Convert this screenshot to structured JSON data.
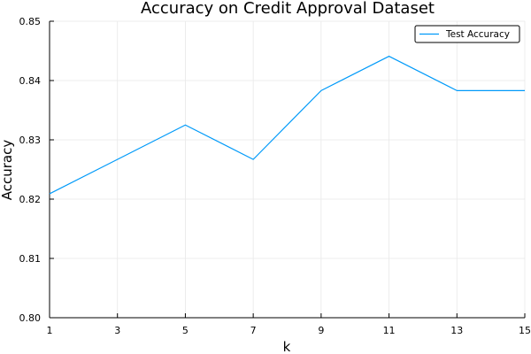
{
  "chart_data": {
    "type": "line",
    "title": "Accuracy on Credit Approval Dataset",
    "xlabel": "k",
    "ylabel": "Accuracy",
    "xlim": [
      1,
      15
    ],
    "ylim": [
      0.8,
      0.85
    ],
    "x_ticks": [
      "1",
      "3",
      "5",
      "7",
      "9",
      "11",
      "13",
      "15"
    ],
    "y_ticks": [
      "0.80",
      "0.81",
      "0.82",
      "0.83",
      "0.84",
      "0.85"
    ],
    "grid": true,
    "legend_position": "top-right",
    "series": [
      {
        "name": "Test Accuracy",
        "color": "#009af9",
        "x": [
          1,
          3,
          5,
          7,
          9,
          11,
          13,
          15
        ],
        "y": [
          0.8209,
          0.8267,
          0.8325,
          0.8267,
          0.8383,
          0.8441,
          0.8383,
          0.8383
        ]
      }
    ]
  }
}
